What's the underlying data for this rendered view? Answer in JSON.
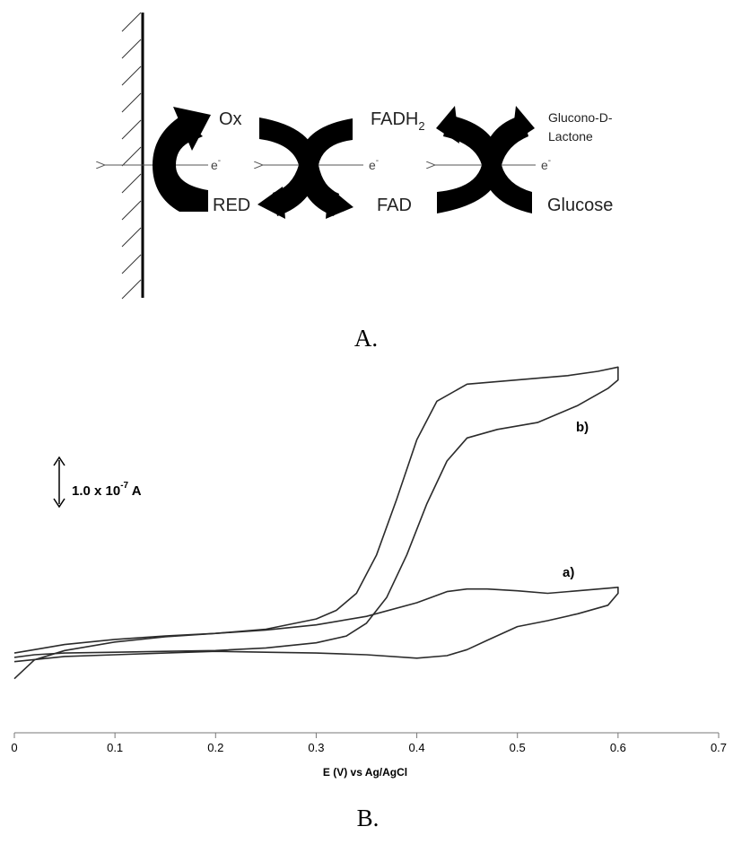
{
  "panel_a": {
    "caption": "A.",
    "labels": {
      "ox": "Ox",
      "red": "RED",
      "fadh2_main": "FADH",
      "fadh2_sub": "2",
      "fad": "FAD",
      "glucono_line1": "Glucono-D-",
      "glucono_line2": "Lactone",
      "glucose": "Glucose",
      "electron": "e",
      "electron_sup": "-"
    }
  },
  "panel_b": {
    "caption": "B.",
    "scale_bar": {
      "text_main": "1.0 x 10",
      "text_exp": "-7",
      "text_unit": " A",
      "magnitude_A": 1e-07
    }
  },
  "chart_data": {
    "type": "line",
    "title": "",
    "xlabel": "E (V) vs Ag/AgCl",
    "ylabel": "",
    "xlim": [
      0,
      0.7
    ],
    "xticks": [
      0,
      0.1,
      0.2,
      0.3,
      0.4,
      0.5,
      0.6,
      0.7
    ],
    "xtick_labels": [
      "0",
      "0.1",
      "0.2",
      "0.3",
      "0.4",
      "0.5",
      "0.6",
      "0.7"
    ],
    "ylim": [
      -0.55,
      3.6
    ],
    "y_units": "1.0 x 10^-7 A",
    "grid": false,
    "series": [
      {
        "name": "a)",
        "points": [
          [
            0.0,
            -0.2
          ],
          [
            0.02,
            0.02
          ],
          [
            0.05,
            0.13
          ],
          [
            0.1,
            0.23
          ],
          [
            0.15,
            0.29
          ],
          [
            0.2,
            0.33
          ],
          [
            0.25,
            0.37
          ],
          [
            0.3,
            0.43
          ],
          [
            0.35,
            0.53
          ],
          [
            0.4,
            0.69
          ],
          [
            0.43,
            0.82
          ],
          [
            0.45,
            0.85
          ],
          [
            0.47,
            0.85
          ],
          [
            0.5,
            0.83
          ],
          [
            0.53,
            0.8
          ],
          [
            0.56,
            0.83
          ],
          [
            0.59,
            0.86
          ],
          [
            0.6,
            0.87
          ],
          [
            0.6,
            0.8
          ],
          [
            0.59,
            0.66
          ],
          [
            0.56,
            0.56
          ],
          [
            0.53,
            0.48
          ],
          [
            0.5,
            0.41
          ],
          [
            0.47,
            0.25
          ],
          [
            0.45,
            0.14
          ],
          [
            0.43,
            0.07
          ],
          [
            0.4,
            0.04
          ],
          [
            0.35,
            0.08
          ],
          [
            0.3,
            0.1
          ],
          [
            0.25,
            0.11
          ],
          [
            0.2,
            0.12
          ],
          [
            0.15,
            0.1
          ],
          [
            0.1,
            0.08
          ],
          [
            0.05,
            0.06
          ],
          [
            0.0,
            0.0
          ]
        ]
      },
      {
        "name": "b)",
        "points": [
          [
            0.0,
            0.05
          ],
          [
            0.02,
            0.08
          ],
          [
            0.05,
            0.1
          ],
          [
            0.1,
            0.11
          ],
          [
            0.15,
            0.12
          ],
          [
            0.2,
            0.13
          ],
          [
            0.25,
            0.16
          ],
          [
            0.3,
            0.22
          ],
          [
            0.33,
            0.3
          ],
          [
            0.35,
            0.45
          ],
          [
            0.37,
            0.75
          ],
          [
            0.39,
            1.25
          ],
          [
            0.41,
            1.85
          ],
          [
            0.43,
            2.35
          ],
          [
            0.45,
            2.62
          ],
          [
            0.48,
            2.72
          ],
          [
            0.52,
            2.8
          ],
          [
            0.56,
            3.0
          ],
          [
            0.59,
            3.2
          ],
          [
            0.6,
            3.3
          ],
          [
            0.6,
            3.45
          ],
          [
            0.58,
            3.4
          ],
          [
            0.55,
            3.35
          ],
          [
            0.5,
            3.3
          ],
          [
            0.45,
            3.25
          ],
          [
            0.42,
            3.05
          ],
          [
            0.4,
            2.6
          ],
          [
            0.38,
            1.9
          ],
          [
            0.36,
            1.25
          ],
          [
            0.34,
            0.8
          ],
          [
            0.32,
            0.6
          ],
          [
            0.3,
            0.5
          ],
          [
            0.25,
            0.38
          ],
          [
            0.2,
            0.33
          ],
          [
            0.15,
            0.3
          ],
          [
            0.1,
            0.26
          ],
          [
            0.05,
            0.2
          ],
          [
            0.02,
            0.14
          ],
          [
            0.0,
            0.1
          ]
        ]
      }
    ]
  }
}
